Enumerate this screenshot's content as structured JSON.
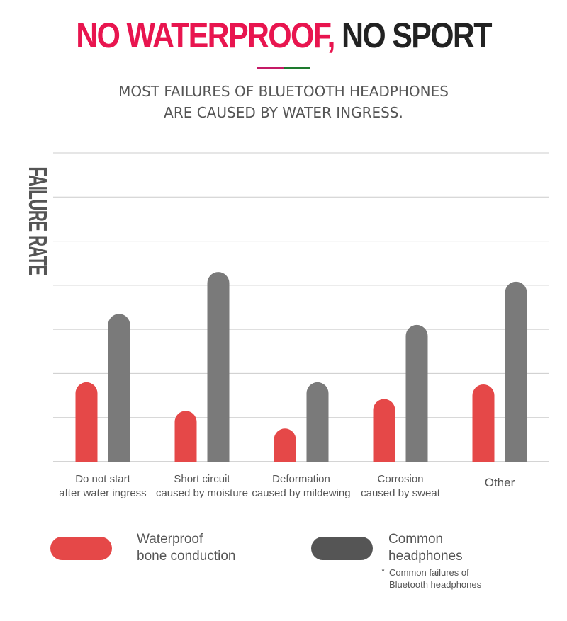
{
  "header": {
    "title_part1": "NO WATERPROOF,",
    "title_part2": "NO SPORT",
    "subtitle_line1": "MOST FAILURES OF BLUETOOTH HEADPHONES",
    "subtitle_line2": "ARE CAUSED BY WATER INGRESS.",
    "divider_colors": [
      "#c41a66",
      "#1e7a2e"
    ]
  },
  "chart_data": {
    "type": "bar",
    "ylabel": "FAILURE RATE",
    "ylim": [
      0,
      7
    ],
    "grid": true,
    "categories": [
      [
        "Do not start",
        "after water ingress"
      ],
      [
        "Short circuit",
        "caused by moisture"
      ],
      [
        "Deformation",
        "caused by mildewing"
      ],
      [
        "Corrosion",
        "caused by sweat"
      ],
      [
        "Other"
      ]
    ],
    "series": [
      {
        "name": "Waterproof bone conduction",
        "color": "#e54848",
        "values": [
          1.8,
          1.15,
          0.75,
          1.42,
          1.75
        ]
      },
      {
        "name": "Common headphones",
        "color": "#7a7a7a",
        "values": [
          3.35,
          4.3,
          1.8,
          3.1,
          4.08
        ]
      }
    ]
  },
  "legend": {
    "waterproof_line1": "Waterproof",
    "waterproof_line2": "bone conduction",
    "waterproof_color": "#e54848",
    "common_line1": "Common",
    "common_line2": "headphones",
    "common_color": "#555555"
  },
  "footnote": {
    "star": "*",
    "line1": "Common failures of",
    "line2": "Bluetooth headphones"
  }
}
